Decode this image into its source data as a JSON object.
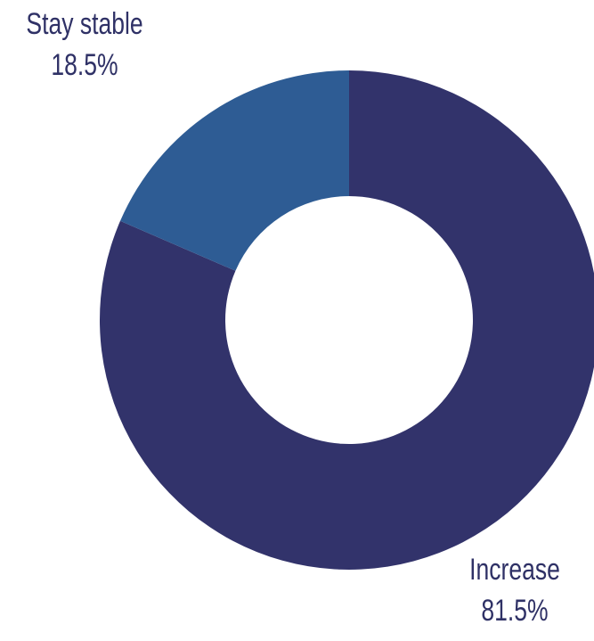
{
  "chart_data": {
    "type": "pie",
    "donut": true,
    "slices": [
      {
        "label": "Increase",
        "value": 81.5,
        "value_label": "81.5%",
        "color": "#32336b"
      },
      {
        "label": "Stay stable",
        "value": 18.5,
        "value_label": "18.5%",
        "color": "#2e5c94"
      }
    ],
    "start_angle_deg": 0,
    "direction": "clockwise",
    "legend": "none"
  }
}
